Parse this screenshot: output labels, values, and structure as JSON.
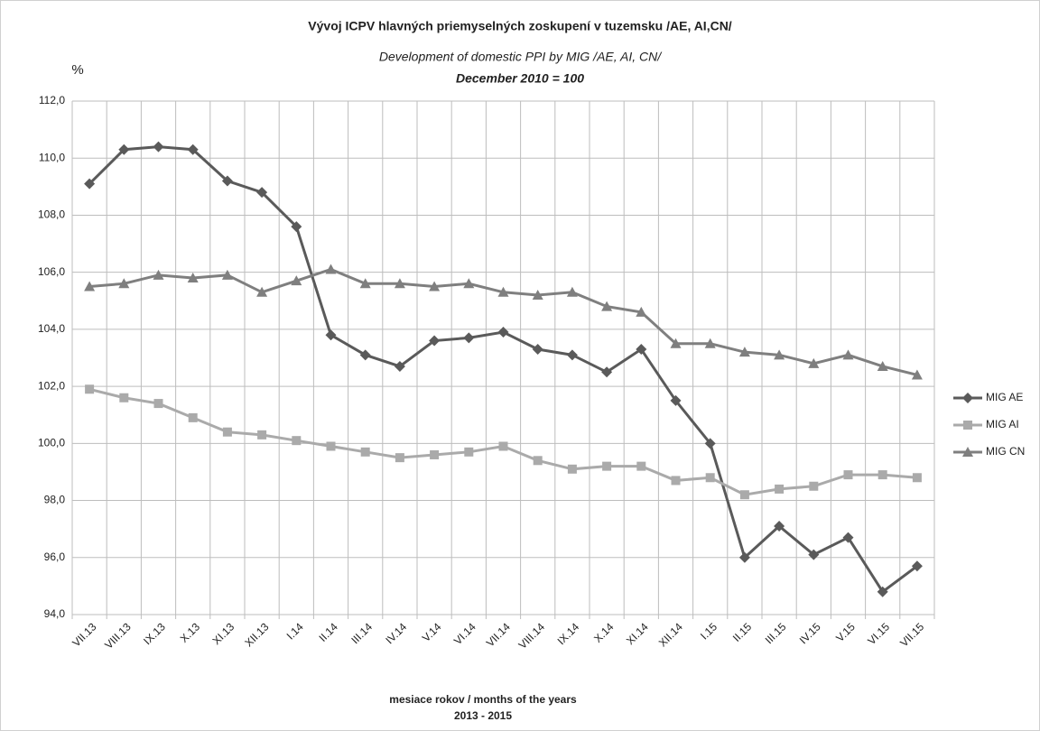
{
  "chart_data": {
    "type": "line",
    "title": "Vývoj ICPV hlavných priemyselných zoskupení v tuzemsku /AE, AI,CN/",
    "subtitle": "Development of domestic PPI by MIG /AE, AI, CN/",
    "subtitle2": "December 2010 = 100",
    "y_label": "%",
    "x_label": "mesiace rokov / months of the years",
    "x_label2": "2013 - 2015",
    "categories": [
      "VII.13",
      "VIII.13",
      "IX.13",
      "X.13",
      "XI.13",
      "XII.13",
      "I.14",
      "II.14",
      "III.14",
      "IV.14",
      "V.14",
      "VI.14",
      "VII.14",
      "VIII.14",
      "IX.14",
      "X.14",
      "XI.14",
      "XII.14",
      "I.15",
      "II.15",
      "III.15",
      "IV.15",
      "V.15",
      "VI.15",
      "VII.15"
    ],
    "series": [
      {
        "name": "MIG AE",
        "color": "#5a5a5a",
        "marker": "diamond",
        "values": [
          109.1,
          110.3,
          110.4,
          110.3,
          109.2,
          108.8,
          107.6,
          103.8,
          103.1,
          102.7,
          103.6,
          103.7,
          103.9,
          103.3,
          103.1,
          102.5,
          103.3,
          101.5,
          100.0,
          96.0,
          97.1,
          96.1,
          96.7,
          94.8,
          95.7
        ]
      },
      {
        "name": "MIG AI",
        "color": "#aaaaaa",
        "marker": "square",
        "values": [
          101.9,
          101.6,
          101.4,
          100.9,
          100.4,
          100.3,
          100.1,
          99.9,
          99.7,
          99.5,
          99.6,
          99.7,
          99.9,
          99.4,
          99.1,
          99.2,
          99.2,
          98.7,
          98.8,
          98.2,
          98.4,
          98.5,
          98.9,
          98.9,
          98.8
        ]
      },
      {
        "name": "MIG CN",
        "color": "#7f7f7f",
        "marker": "triangle",
        "values": [
          105.5,
          105.6,
          105.9,
          105.8,
          105.9,
          105.3,
          105.7,
          106.1,
          105.6,
          105.6,
          105.5,
          105.6,
          105.3,
          105.2,
          105.3,
          104.8,
          104.6,
          103.5,
          103.5,
          103.2,
          103.1,
          102.8,
          103.1,
          102.7,
          102.4
        ]
      }
    ],
    "ylim": [
      94,
      112
    ],
    "yticks": [
      {
        "value": 94,
        "label": "94,0"
      },
      {
        "value": 96,
        "label": "96,0"
      },
      {
        "value": 98,
        "label": "98,0"
      },
      {
        "value": 100,
        "label": "100,0"
      },
      {
        "value": 102,
        "label": "102,0"
      },
      {
        "value": 104,
        "label": "104,0"
      },
      {
        "value": 106,
        "label": "106,0"
      },
      {
        "value": 108,
        "label": "108,0"
      },
      {
        "value": 110,
        "label": "110,0"
      },
      {
        "value": 112,
        "label": "112,0"
      }
    ],
    "grid": true,
    "legend": "right"
  }
}
